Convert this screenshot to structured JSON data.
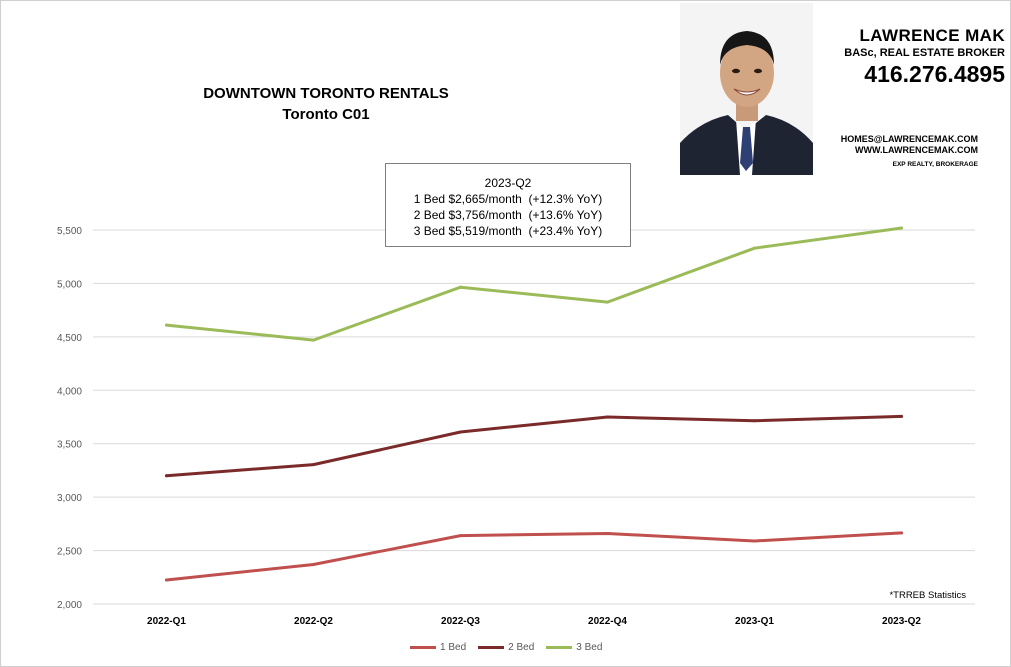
{
  "chart_data": {
    "type": "line",
    "title": "DOWNTOWN TORONTO RENTALS",
    "subtitle": "Toronto C01",
    "categories": [
      "2022-Q1",
      "2022-Q2",
      "2022-Q3",
      "2022-Q4",
      "2023-Q1",
      "2023-Q2"
    ],
    "series": [
      {
        "name": "1 Bed",
        "color": "#c0504d",
        "values": [
          2225,
          2370,
          2640,
          2660,
          2590,
          2665
        ]
      },
      {
        "name": "2 Bed",
        "color": "#7b2a2a",
        "values": [
          3200,
          3305,
          3610,
          3750,
          3715,
          3756
        ]
      },
      {
        "name": "3 Bed",
        "color": "#9bbb59",
        "values": [
          4610,
          4470,
          4965,
          4825,
          5330,
          5519
        ]
      }
    ],
    "ylim": [
      2000,
      5500
    ],
    "y_ticks": [
      "2,000",
      "2,500",
      "3,000",
      "3,500",
      "4,000",
      "4,500",
      "5,000",
      "5,500"
    ],
    "grid": true,
    "legend_position": "bottom",
    "annotation": {
      "title": "2023-Q2",
      "lines": [
        "1 Bed $2,665/month  (+12.3% YoY)",
        "2 Bed $3,756/month  (+13.6% YoY)",
        "3 Bed $5,519/month  (+23.4% YoY)"
      ]
    },
    "source_note": "*TRREB Statistics"
  },
  "agent": {
    "name": "LAWRENCE MAK",
    "credentials": "BASc, REAL ESTATE BROKER",
    "phone": "416.276.4895",
    "email": "HOMES@LAWRENCEMAK.COM",
    "website": "WWW.LAWRENCEMAK.COM",
    "brokerage": "EXP REALTY, BROKERAGE"
  },
  "colors": {
    "gridline": "#d9d9d9",
    "axis_text": "#595959",
    "frame": "#cfcfcf"
  }
}
